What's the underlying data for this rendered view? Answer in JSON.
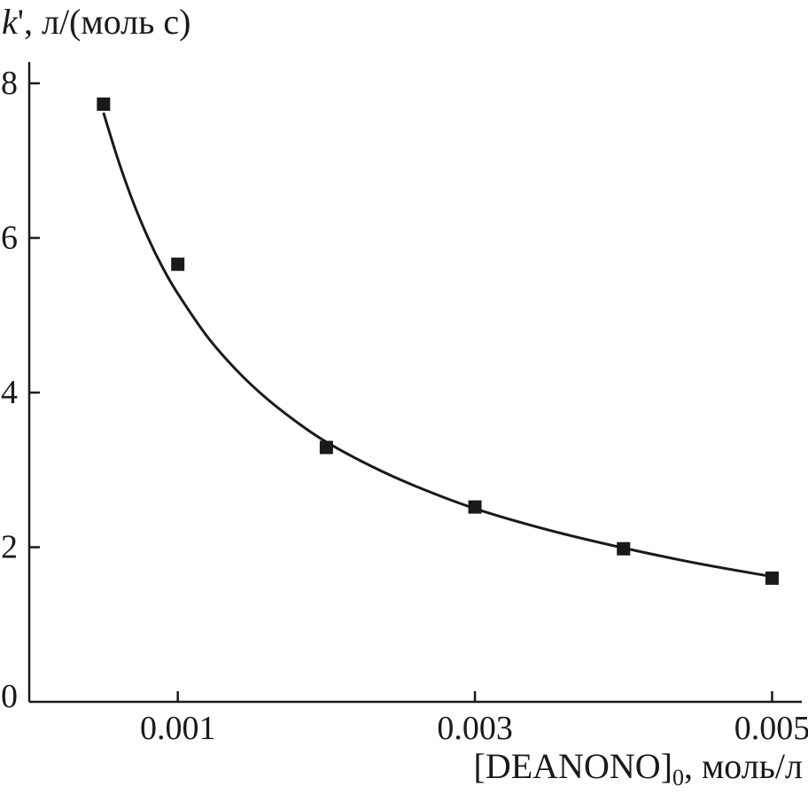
{
  "chart_data": {
    "type": "scatter",
    "title": "",
    "ylabel": {
      "symbol": "k",
      "prime": "'",
      "rest": ", л/(моль с)"
    },
    "xlabel": {
      "main": "[DEANONO]",
      "subscript": "0",
      "rest": ", моль/л"
    },
    "xlim": [
      0.0,
      0.0052
    ],
    "ylim": [
      0,
      8.4
    ],
    "x_ticks": [
      {
        "value": 0.001,
        "label": "0.001"
      },
      {
        "value": 0.003,
        "label": "0.003"
      },
      {
        "value": 0.005,
        "label": "0.005"
      }
    ],
    "y_ticks": [
      {
        "value": 0,
        "label": "0"
      },
      {
        "value": 2,
        "label": "2"
      },
      {
        "value": 4,
        "label": "4"
      },
      {
        "value": 6,
        "label": "6"
      },
      {
        "value": 8,
        "label": "8"
      }
    ],
    "series": [
      {
        "marker": "square",
        "color": "#1a1a1a",
        "points": [
          {
            "x": 0.0005,
            "y": 7.73
          },
          {
            "x": 0.001,
            "y": 5.66
          },
          {
            "x": 0.002,
            "y": 3.29
          },
          {
            "x": 0.003,
            "y": 2.52
          },
          {
            "x": 0.004,
            "y": 1.98
          },
          {
            "x": 0.005,
            "y": 1.6
          }
        ]
      }
    ],
    "fit_curve": {
      "color": "#1a1a1a",
      "x": [
        0.0005,
        0.0006,
        0.0007,
        0.0008,
        0.0009,
        0.001,
        0.0012,
        0.0014,
        0.0016,
        0.0018,
        0.002,
        0.0023,
        0.0026,
        0.003,
        0.0035,
        0.004,
        0.0045,
        0.005
      ],
      "y": [
        7.62,
        7.0,
        6.46,
        6.0,
        5.61,
        5.28,
        4.72,
        4.28,
        3.92,
        3.62,
        3.36,
        3.05,
        2.79,
        2.5,
        2.22,
        1.99,
        1.79,
        1.62
      ]
    },
    "grid": false,
    "legend": "none"
  }
}
